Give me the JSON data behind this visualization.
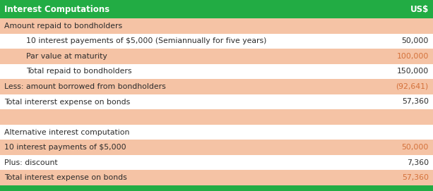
{
  "title_left": "Interest Computations",
  "title_right": "US$",
  "header_bg": "#22AC44",
  "header_text_color": "#FFFFFF",
  "value_color_orange": "#D4713A",
  "label_color": "#2C2C2C",
  "rows": [
    {
      "label": "Amount repaid to bondholders",
      "value": "",
      "indent": 0,
      "bg": "#F5C3A5",
      "bold": false,
      "val_color": "#D4713A"
    },
    {
      "label": "10 interest payements of $5,000 (Semiannually for five years)",
      "value": "50,000",
      "indent": 1,
      "bg": "#FFFFFF",
      "bold": false,
      "val_color": "#2C2C2C"
    },
    {
      "label": "Par value at maturity",
      "value": "100,000",
      "indent": 1,
      "bg": "#F5C3A5",
      "bold": false,
      "val_color": "#D4713A"
    },
    {
      "label": "Total repaid to bondholders",
      "value": "150,000",
      "indent": 1,
      "bg": "#FFFFFF",
      "bold": false,
      "val_color": "#2C2C2C"
    },
    {
      "label": "Less: amount borrowed from bondholders",
      "value": "(92,641)",
      "indent": 0,
      "bg": "#F5C3A5",
      "bold": false,
      "val_color": "#D4713A"
    },
    {
      "label": "Total intererst expense on bonds",
      "value": "57,360",
      "indent": 0,
      "bg": "#FFFFFF",
      "bold": false,
      "val_color": "#2C2C2C"
    },
    {
      "label": "",
      "value": "",
      "indent": 0,
      "bg": "#F5C3A5",
      "bold": false,
      "val_color": "#D4713A"
    },
    {
      "label": "Alternative interest computation",
      "value": "",
      "indent": 0,
      "bg": "#FFFFFF",
      "bold": false,
      "val_color": "#2C2C2C"
    },
    {
      "label": "10 interest payments of $5,000",
      "value": "50,000",
      "indent": 0,
      "bg": "#F5C3A5",
      "bold": false,
      "val_color": "#D4713A"
    },
    {
      "label": "Plus: discount",
      "value": "7,360",
      "indent": 0,
      "bg": "#FFFFFF",
      "bold": false,
      "val_color": "#2C2C2C"
    },
    {
      "label": "Total interest expense on bonds",
      "value": "57,360",
      "indent": 0,
      "bg": "#F5C3A5",
      "bold": false,
      "val_color": "#D4713A"
    }
  ],
  "figsize": [
    6.13,
    2.71
  ],
  "dpi": 100
}
